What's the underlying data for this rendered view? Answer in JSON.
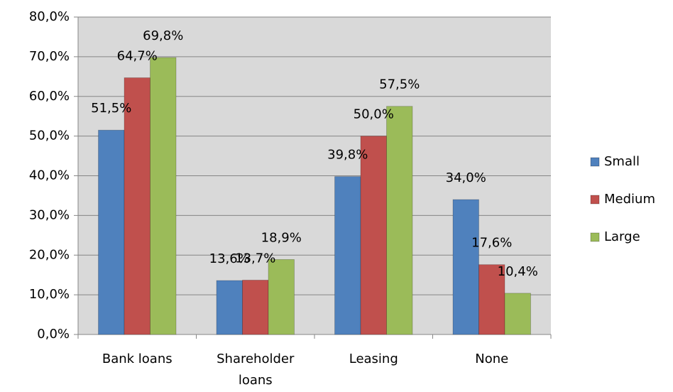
{
  "chart_data": {
    "type": "bar",
    "categories": [
      "Bank loans",
      "Shareholder loans",
      "Leasing",
      "None"
    ],
    "series": [
      {
        "name": "Small",
        "color": "#4f81bd",
        "values": [
          51.5,
          13.6,
          39.8,
          34.0
        ],
        "value_labels": [
          "51,5%",
          "13,6%",
          "39,8%",
          "34,0%"
        ]
      },
      {
        "name": "Medium",
        "color": "#c0504d",
        "values": [
          64.7,
          13.7,
          50.0,
          17.6
        ],
        "value_labels": [
          "64,7%",
          "13,7%",
          "50,0%",
          "17,6%"
        ]
      },
      {
        "name": "Large",
        "color": "#9bbb59",
        "values": [
          69.8,
          18.9,
          57.5,
          10.4
        ],
        "value_labels": [
          "69,8%",
          "18,9%",
          "57,5%",
          "10,4%"
        ]
      }
    ],
    "ylim": [
      0,
      80
    ],
    "yticks": [
      {
        "value": 0,
        "label": "0,0%"
      },
      {
        "value": 10,
        "label": "10,0%"
      },
      {
        "value": 20,
        "label": "20,0%"
      },
      {
        "value": 30,
        "label": "30,0%"
      },
      {
        "value": 40,
        "label": "40,0%"
      },
      {
        "value": 50,
        "label": "50,0%"
      },
      {
        "value": 60,
        "label": "60,0%"
      },
      {
        "value": 70,
        "label": "70,0%"
      },
      {
        "value": 80,
        "label": "80,0%"
      }
    ],
    "grid": true,
    "plot_background": "#d9d9d9",
    "legend": "right"
  }
}
